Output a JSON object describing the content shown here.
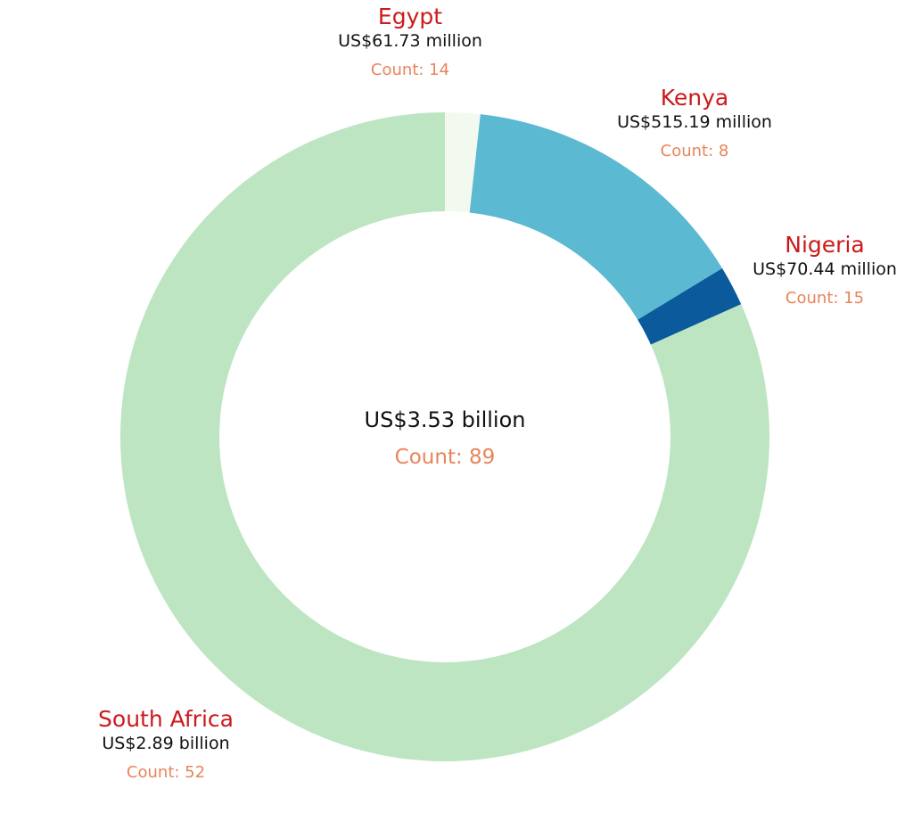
{
  "chart_data": {
    "type": "pie",
    "variant": "donut",
    "center": {
      "amount": "US$3.53 billion",
      "count": "Count: 89"
    },
    "slices": [
      {
        "name": "Egypt",
        "amount": "US$61.73 million",
        "value": 61.73,
        "count": "Count: 14",
        "color": "#f2f9ee"
      },
      {
        "name": "Kenya",
        "amount": "US$515.19 million",
        "value": 515.19,
        "count": "Count: 8",
        "color": "#5cb9d2"
      },
      {
        "name": "Nigeria",
        "amount": "US$70.44 million",
        "value": 70.44,
        "count": "Count: 15",
        "color": "#0a5a9c"
      },
      {
        "name": "South Africa",
        "amount": "US$2.89 billion",
        "value": 2890,
        "count": "Count: 52",
        "color": "#bde5c1"
      }
    ],
    "value_unit": "US$ million",
    "colors": {
      "country_label": "#cc1a1a",
      "amount_label": "#111111",
      "count_label": "#e8845a"
    }
  }
}
